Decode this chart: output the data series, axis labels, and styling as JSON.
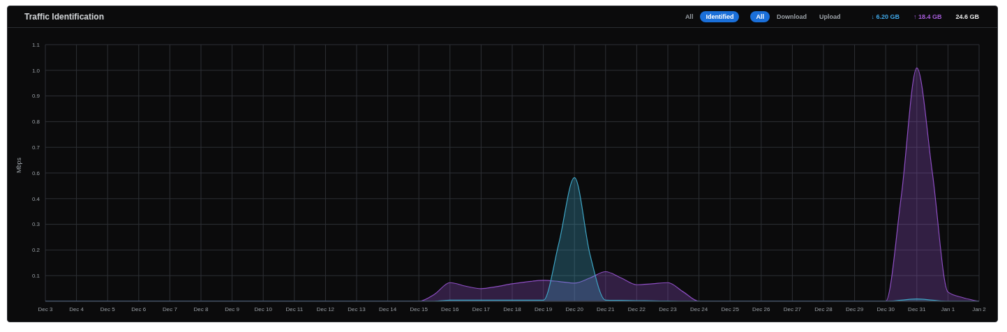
{
  "chart_data": {
    "type": "area",
    "title": "Traffic Identification",
    "ylabel": "Mbps",
    "annotations": [
      "All",
      "Identified",
      "All",
      "Download",
      "Upload",
      "↓ 6.20 GB",
      "↑ 18.4 GB",
      "24.6 GB"
    ],
    "categories": [
      "Dec 3",
      null,
      "Dec 4",
      null,
      "Dec 5",
      null,
      "Dec 6",
      null,
      "Dec 7",
      null,
      "Dec 8",
      null,
      "Dec 9",
      null,
      "Dec 10",
      null,
      "Dec 11",
      null,
      "Dec 12",
      null,
      "Dec 13",
      null,
      "Dec 14",
      null,
      "Dec 15",
      null,
      "Dec 16",
      null,
      "Dec 17",
      null,
      "Dec 18",
      null,
      "Dec 19",
      null,
      "Dec 20",
      null,
      "Dec 21",
      null,
      "Dec 22",
      null,
      "Dec 23",
      null,
      "Dec 24",
      null,
      "Dec 25",
      null,
      "Dec 26",
      null,
      "Dec 27",
      null,
      "Dec 28",
      null,
      "Dec 29",
      null,
      "Dec 30",
      null,
      "Dec 31",
      null,
      "Jan 1",
      null,
      "Jan 2"
    ],
    "series": [
      {
        "color": "#8e4fc4",
        "values": [
          0,
          0,
          0,
          0,
          0,
          0,
          0,
          0,
          0,
          0,
          0,
          0,
          0,
          0,
          0,
          0,
          0,
          0,
          0,
          0,
          0,
          0,
          0,
          0,
          0,
          0.03,
          0.08,
          0.065,
          0.054,
          0.063,
          0.075,
          0.084,
          0.09,
          0.085,
          0.078,
          0.1,
          0.127,
          0.1,
          0.071,
          0.075,
          0.08,
          0.04,
          0,
          0,
          0,
          0,
          0,
          0,
          0,
          0,
          0,
          0,
          0,
          0,
          0,
          0.45,
          1.0,
          0.55,
          0.04,
          0.015,
          0
        ]
      },
      {
        "color": "#3fa6c6",
        "values": [
          0,
          0,
          0,
          0,
          0,
          0,
          0,
          0,
          0,
          0,
          0,
          0,
          0,
          0,
          0,
          0,
          0,
          0,
          0,
          0,
          0,
          0,
          0,
          0,
          0,
          0,
          0.005,
          0.005,
          0.005,
          0.005,
          0.005,
          0.005,
          0.005,
          0.25,
          0.53,
          0.2,
          0.005,
          0.004,
          0.003,
          0.002,
          0.001,
          0,
          0,
          0,
          0,
          0,
          0,
          0,
          0,
          0,
          0,
          0,
          0,
          0,
          0,
          0.005,
          0.01,
          0.005,
          0,
          0,
          0
        ]
      }
    ],
    "ylim": [
      0,
      1.1
    ],
    "yticks": [
      {
        "value": 0.11,
        "label": "0.1"
      },
      {
        "value": 0.22,
        "label": "0.2"
      },
      {
        "value": 0.33,
        "label": "0.3"
      },
      {
        "value": 0.44,
        "label": "0.4"
      },
      {
        "value": 0.55,
        "label": "0.6"
      },
      {
        "value": 0.66,
        "label": "0.7"
      },
      {
        "value": 0.77,
        "label": "0.8"
      },
      {
        "value": 0.88,
        "label": "0.9"
      },
      {
        "value": 0.99,
        "label": "1.0"
      },
      {
        "value": 1.1,
        "label": "1.1"
      }
    ],
    "grid": true,
    "legend": false
  }
}
